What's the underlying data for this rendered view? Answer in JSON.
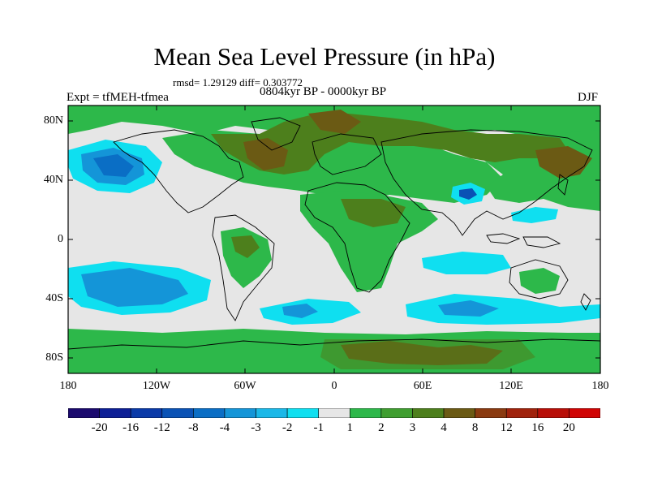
{
  "title": "Mean Sea Level Pressure (in hPa)",
  "stats": "rmsd= 1.29129 diff= 0.303772",
  "subtitle": "0804kyr BP - 0000kyr BP",
  "experiment": "Expt = tfMEH-tfmea",
  "season": "DJF",
  "lat_labels": [
    "80N",
    "40N",
    "0",
    "40S",
    "80S"
  ],
  "lon_labels": [
    "180",
    "120W",
    "60W",
    "0",
    "60E",
    "120E",
    "180"
  ],
  "colorbar": {
    "labels": [
      "-20",
      "-16",
      "-12",
      "-8",
      "-4",
      "-3",
      "-2",
      "-1",
      "1",
      "2",
      "3",
      "4",
      "8",
      "12",
      "16",
      "20"
    ],
    "colors": [
      "#1b0a6e",
      "#0d1f96",
      "#0a3aa8",
      "#0a52b5",
      "#0a6ec5",
      "#1495d8",
      "#1ab8e8",
      "#0fdff0",
      "#e6e6e6",
      "#2db84a",
      "#3f9e30",
      "#4d7f1c",
      "#6b5a14",
      "#8a3a10",
      "#a0220c",
      "#b80e08",
      "#d00404"
    ]
  },
  "palette": {
    "neutral": "#e6e6e6",
    "green": "#2db84a",
    "dkgreen": "#3f9e30",
    "olive": "#4d7f1c",
    "brown": "#6b5a14",
    "cyan": "#0fdff0",
    "ltblue": "#1ab8e8",
    "blue": "#1495d8",
    "dkblue": "#0a6ec5",
    "navy": "#0a52b5"
  }
}
